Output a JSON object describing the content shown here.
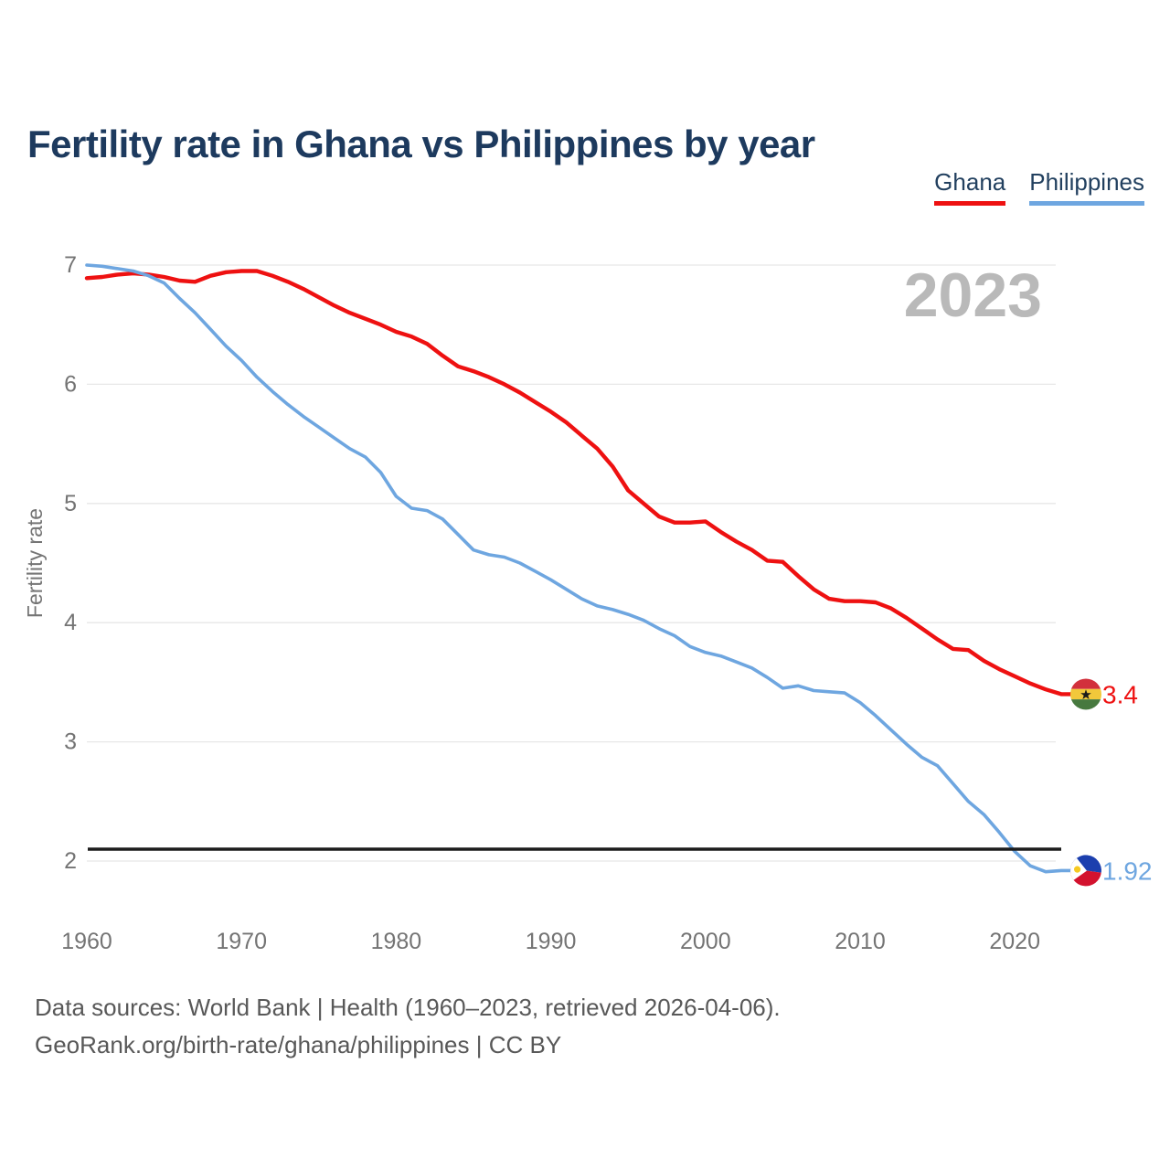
{
  "title": "Fertility rate in Ghana vs Philippines by year",
  "watermark": "2023",
  "legend": [
    {
      "label": "Ghana",
      "color": "#ee1111"
    },
    {
      "label": "Philippines",
      "color": "#6ea6e0"
    }
  ],
  "footer": {
    "line1": "Data sources: World Bank | Health (1960–2023, retrieved 2026-04-06).",
    "line2": "GeoRank.org/birth-rate/ghana/philippines | CC BY"
  },
  "colors": {
    "title_text": "#1d3a5e",
    "tick_text": "#747474",
    "gridline": "#e7e7e7",
    "watermark": "#b9b9b9",
    "reference_line": "#1c1c1c",
    "footer_text": "#585858"
  },
  "markers": {
    "ghana": {
      "icon": "ghana-flag-icon",
      "end_label": "3.4",
      "flag_colors": {
        "red": "#d2303c",
        "gold": "#f2c83b",
        "green": "#47793f",
        "star": "#1a1a1a"
      }
    },
    "philippines": {
      "icon": "philippines-flag-icon",
      "end_label": "1.92",
      "flag_colors": {
        "blue": "#1c3fae",
        "red": "#d3122e",
        "white": "#ffffff",
        "sun": "#f6c921"
      }
    }
  },
  "chart_data": {
    "type": "line",
    "title": "Fertility rate in Ghana vs Philippines by year",
    "xlabel": "",
    "ylabel": "Fertility rate",
    "grid": true,
    "legend_position": "top-right",
    "ylim": [
      1.8,
      7.1
    ],
    "yticks": [
      2,
      3,
      4,
      5,
      6,
      7
    ],
    "xticks": [
      1960,
      1970,
      1980,
      1990,
      2000,
      2010,
      2020
    ],
    "reference_line": {
      "value": 2.1,
      "color": "#1c1c1c"
    },
    "x": [
      1960,
      1961,
      1962,
      1963,
      1964,
      1965,
      1966,
      1967,
      1968,
      1969,
      1970,
      1971,
      1972,
      1973,
      1974,
      1975,
      1976,
      1977,
      1978,
      1979,
      1980,
      1981,
      1982,
      1983,
      1984,
      1985,
      1986,
      1987,
      1988,
      1989,
      1990,
      1991,
      1992,
      1993,
      1994,
      1995,
      1996,
      1997,
      1998,
      1999,
      2000,
      2001,
      2002,
      2003,
      2004,
      2005,
      2006,
      2007,
      2008,
      2009,
      2010,
      2011,
      2012,
      2013,
      2014,
      2015,
      2016,
      2017,
      2018,
      2019,
      2020,
      2021,
      2022,
      2023
    ],
    "series": [
      {
        "name": "Ghana",
        "color": "#ee1111",
        "width": 4.4,
        "end_label": "3.4",
        "end_value": 3.4,
        "values": [
          6.89,
          6.9,
          6.92,
          6.93,
          6.92,
          6.9,
          6.87,
          6.86,
          6.91,
          6.94,
          6.95,
          6.95,
          6.91,
          6.86,
          6.8,
          6.73,
          6.66,
          6.6,
          6.55,
          6.5,
          6.44,
          6.4,
          6.34,
          6.24,
          6.15,
          6.11,
          6.06,
          6.0,
          5.93,
          5.85,
          5.77,
          5.68,
          5.57,
          5.46,
          5.31,
          5.11,
          5.0,
          4.89,
          4.84,
          4.84,
          4.85,
          4.76,
          4.68,
          4.61,
          4.52,
          4.51,
          4.39,
          4.28,
          4.2,
          4.18,
          4.18,
          4.17,
          4.12,
          4.04,
          3.95,
          3.86,
          3.78,
          3.77,
          3.68,
          3.61,
          3.55,
          3.49,
          3.44,
          3.4
        ]
      },
      {
        "name": "Philippines",
        "color": "#6ea6e0",
        "width": 3.6,
        "end_label": "1.92",
        "end_value": 1.92,
        "values": [
          7.0,
          6.99,
          6.97,
          6.95,
          6.91,
          6.85,
          6.72,
          6.6,
          6.46,
          6.32,
          6.2,
          6.06,
          5.94,
          5.83,
          5.73,
          5.64,
          5.55,
          5.46,
          5.39,
          5.26,
          5.06,
          4.96,
          4.94,
          4.87,
          4.74,
          4.61,
          4.57,
          4.55,
          4.5,
          4.43,
          4.36,
          4.28,
          4.2,
          4.14,
          4.11,
          4.07,
          4.02,
          3.95,
          3.89,
          3.8,
          3.75,
          3.72,
          3.67,
          3.62,
          3.54,
          3.45,
          3.47,
          3.43,
          3.42,
          3.41,
          3.33,
          3.22,
          3.1,
          2.98,
          2.87,
          2.8,
          2.65,
          2.5,
          2.39,
          2.24,
          2.08,
          1.96,
          1.91,
          1.92
        ]
      }
    ]
  }
}
